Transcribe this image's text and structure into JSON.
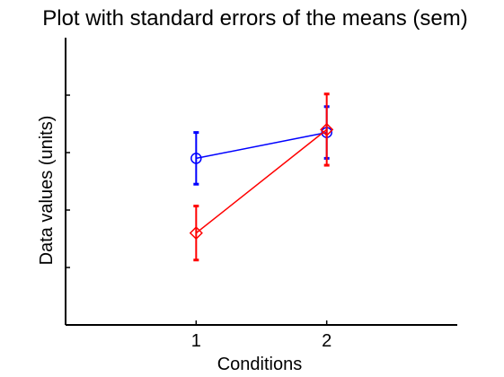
{
  "chart_data": {
    "type": "line",
    "title": "Plot with standard errors of the means (sem)",
    "xlabel": "Conditions",
    "ylabel": "Data values (units)",
    "xlim": [
      0,
      3
    ],
    "ylim": [
      0,
      5
    ],
    "x_ticks": [
      1,
      2
    ],
    "x_tick_labels": [
      "1",
      "2"
    ],
    "y_ticks": [
      1,
      2,
      3,
      4
    ],
    "y_tick_labels": [],
    "grid": false,
    "legend": "none",
    "series": [
      {
        "color": "#0000ff",
        "marker": "circle",
        "x": [
          1,
          2
        ],
        "y": [
          2.9,
          3.35
        ],
        "sem": [
          0.45,
          0.45
        ]
      },
      {
        "color": "#ff0000",
        "marker": "diamond",
        "x": [
          1,
          2
        ],
        "y": [
          1.6,
          3.4
        ],
        "sem": [
          0.47,
          0.62
        ]
      }
    ]
  }
}
